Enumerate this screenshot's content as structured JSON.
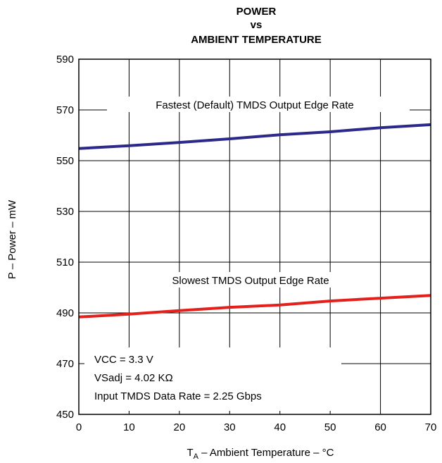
{
  "chart_data": {
    "type": "line",
    "title_lines": [
      "POWER",
      "vs",
      "AMBIENT TEMPERATURE"
    ],
    "xlabel_main": "T",
    "xlabel_sub": "A",
    "xlabel_rest": " – Ambient Temperature – °C",
    "ylabel": "P – Power – mW",
    "xlim": [
      0,
      70
    ],
    "ylim": [
      450,
      590
    ],
    "x_ticks": [
      0,
      10,
      20,
      30,
      40,
      50,
      60,
      70
    ],
    "y_ticks": [
      450,
      470,
      490,
      510,
      530,
      550,
      570,
      590
    ],
    "x_tick_labels": [
      "0",
      "10",
      "20",
      "30",
      "40",
      "50",
      "60",
      "70"
    ],
    "y_tick_labels": [
      "450",
      "470",
      "490",
      "510",
      "530",
      "550",
      "570",
      "590"
    ],
    "grid": true,
    "series": [
      {
        "name": "Fastest (Default) TMDS Output Edge Rate",
        "color": "#2b2a8a",
        "x": [
          0,
          10,
          20,
          30,
          40,
          50,
          60,
          70
        ],
        "y": [
          554.8,
          555.9,
          557.2,
          558.6,
          560.2,
          561.4,
          563.0,
          564.2
        ]
      },
      {
        "name": "Slowest TMDS Output Edge Rate",
        "color": "#e3201b",
        "x": [
          0,
          10,
          20,
          30,
          40,
          50,
          60,
          70
        ],
        "y": [
          488.4,
          489.5,
          490.9,
          492.2,
          493.1,
          494.7,
          495.8,
          496.9
        ]
      }
    ],
    "annotations": [
      "VCC = 3.3 V",
      "VSadj = 4.02 KΩ",
      "Input TMDS Data Rate = 2.25 Gbps"
    ]
  }
}
